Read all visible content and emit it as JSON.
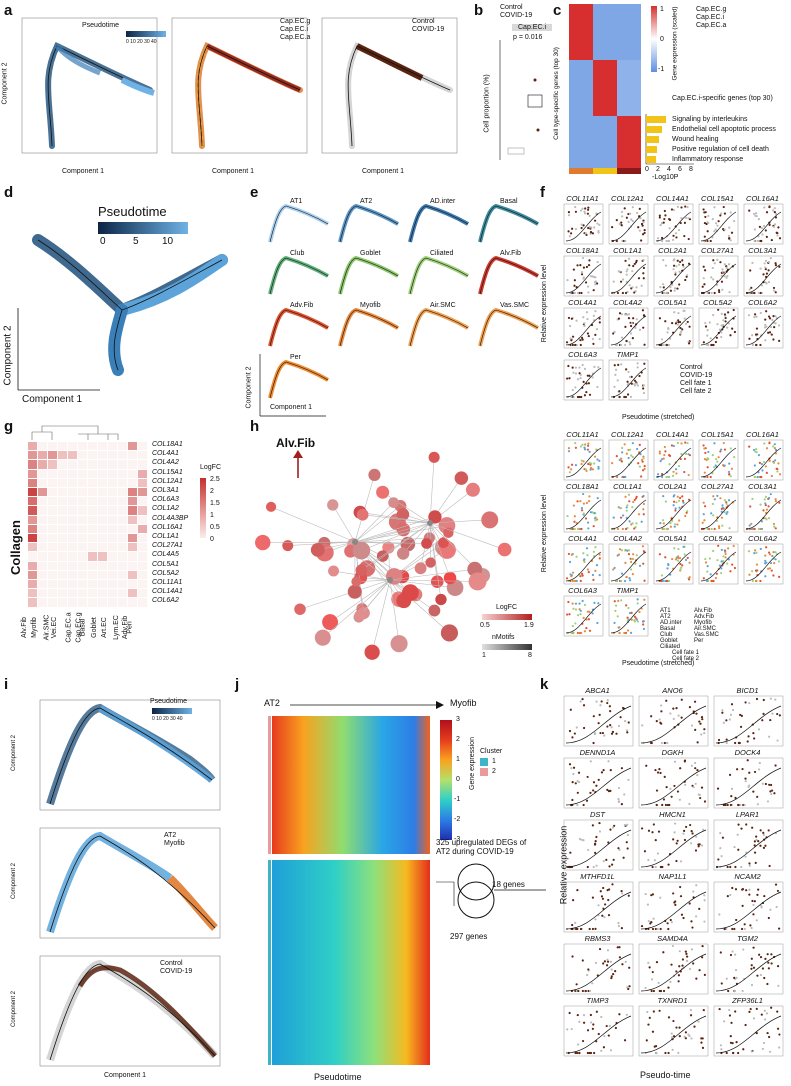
{
  "panels": [
    "a",
    "b",
    "c",
    "d",
    "e",
    "f",
    "g",
    "h",
    "i",
    "j",
    "k"
  ],
  "a": {
    "xlabel": "Component 1",
    "ylabel": "Component 2",
    "legend1_title": "Pseudotime",
    "legend1_ticks": "0 10 20 30 40",
    "legend2": [
      "Cap.EC.g",
      "Cap.EC.i",
      "Cap.EC.a"
    ],
    "legend3": [
      "Control",
      "COVID-19"
    ]
  },
  "b": {
    "legend": [
      "Control",
      "COVID-19"
    ],
    "facet": "Cap.EC.i",
    "pvalue": "p = 0.016",
    "ylabel": "Cell proportion (%)"
  },
  "c": {
    "ylabel": "Cell type-specific genes (top 30)",
    "legend_title": "Gene expression (scaled)",
    "legend_ticks": [
      "1",
      "0",
      "-1"
    ],
    "legend": [
      "Cap.EC.g",
      "Cap.EC.i",
      "Cap.EC.a"
    ],
    "subtitle": "Cap.EC.i-specific genes (top 30)",
    "terms": [
      "Signaling by interleukins",
      "Endothelial cell apoptotic process",
      "Wound healing",
      "Positive regulation of cell death",
      "Inflammatory response"
    ],
    "xticks": [
      "0",
      "2",
      "4",
      "6",
      "8"
    ],
    "xlabel": "-Log10P"
  },
  "d": {
    "legend_title": "Pseudotime",
    "legend_ticks": [
      "0",
      "5",
      "10"
    ],
    "xlabel": "Component 1",
    "ylabel": "Component 2"
  },
  "e": {
    "cells": [
      "AT1",
      "AT2",
      "AD.inter",
      "Basal",
      "Club",
      "Goblet",
      "Ciliated",
      "Alv.Fib",
      "Adv.Fib",
      "Myofib",
      "Air.SMC",
      "Vas.SMC",
      "Per"
    ],
    "xlabel": "Component 1",
    "ylabel": "Component 2"
  },
  "f": {
    "genes": [
      "COL11A1",
      "COL12A1",
      "COL14A1",
      "COL15A1",
      "COL16A1",
      "COL18A1",
      "COL1A1",
      "COL2A1",
      "COL27A1",
      "COL3A1",
      "COL4A1",
      "COL4A2",
      "COL5A1",
      "COL5A2",
      "COL6A2",
      "COL6A3",
      "TIMP1"
    ],
    "ylabel": "Relative expression level",
    "xlabel": "Pseudotime (stretched)",
    "legend_top": [
      "Control",
      "COVID-19",
      "Cell fate 1",
      "Cell fate 2"
    ],
    "legend_bottom": [
      "AT1",
      "AT2",
      "AD.inter",
      "Basal",
      "Club",
      "Goblet",
      "Ciliated",
      "Alv.Fib",
      "Adv.Fib",
      "Myofib",
      "Air.SMC",
      "Vas.SMC",
      "Per"
    ],
    "legend_bottom_lines": [
      "Cell fate 1",
      "Cell fate 2"
    ]
  },
  "g": {
    "rows": [
      "COL18A1",
      "COL4A1",
      "COL4A2",
      "COL15A1",
      "COL12A1",
      "COL3A1",
      "COL6A3",
      "COL1A2",
      "COL4A3BP",
      "COL16A1",
      "COL1A1",
      "COL27A1",
      "COL4A5",
      "COL5A1",
      "COL5A2",
      "COL11A1",
      "COL14A1",
      "COL6A2"
    ],
    "cols": [
      "Alv.Fib",
      "Myofib",
      "Air.SMC",
      "Vei.EC",
      "Cap.EC.a",
      "Cap.EC.g",
      "Basal",
      "Goblet",
      "Art.EC",
      "Lym.EC",
      "Adv.Fib",
      "Peri"
    ],
    "ylabel": "Collagen",
    "legend_title": "LogFC",
    "legend_ticks": [
      "2.5",
      "2",
      "1.5",
      "1",
      "0.5",
      "0"
    ]
  },
  "h": {
    "title": "Alv.Fib",
    "legend1_title": "LogFC",
    "legend1_ticks": [
      "0.5",
      "1.9"
    ],
    "legend2_title": "nMotifs",
    "legend2_ticks": [
      "1",
      "8"
    ]
  },
  "i": {
    "legend_title": "Pseudotime",
    "legend_ticks": "0 10 20 30 40",
    "legend2": [
      "AT2",
      "Myofib"
    ],
    "legend3": [
      "Control",
      "COVID-19"
    ],
    "xlabel": "Component 1",
    "ylabel": "Component 2"
  },
  "j": {
    "start": "AT2",
    "end": "Myofib",
    "legend_title": "Gene expression",
    "legend_ticks": [
      "3",
      "2",
      "1",
      "0",
      "-1",
      "-2",
      "-3"
    ],
    "cluster_title": "Cluster",
    "clusters": [
      "1",
      "2"
    ],
    "xlabel": "Pseudotime",
    "venn_top": "325 upregulated DEGs of AT2 during COVID-19",
    "venn_mid": "18 genes",
    "venn_bottom": "297 genes"
  },
  "k": {
    "genes": [
      "ABCA1",
      "ANO6",
      "BICD1",
      "DENND1A",
      "DGKH",
      "DOCK4",
      "DST",
      "HMCN1",
      "LPAR1",
      "MTHFD1L",
      "NAP1L1",
      "NCAM2",
      "RBMS3",
      "SAMD4A",
      "TGM2",
      "TIMP3",
      "TXNRD1",
      "ZFP36L1"
    ],
    "ylabel": "Relative expression",
    "xlabel": "Pseudo-time",
    "yticks": [
      "3.0",
      "1.0",
      "0.1"
    ],
    "xticks": [
      "0",
      "10",
      "20",
      "30",
      "40"
    ]
  },
  "colors": {
    "navy": "#0b2545",
    "blue": "#5ba3d9",
    "brown": "#5a2410",
    "red": "#c62f2f",
    "orange": "#e07a2e",
    "yellow": "#f3c418"
  }
}
